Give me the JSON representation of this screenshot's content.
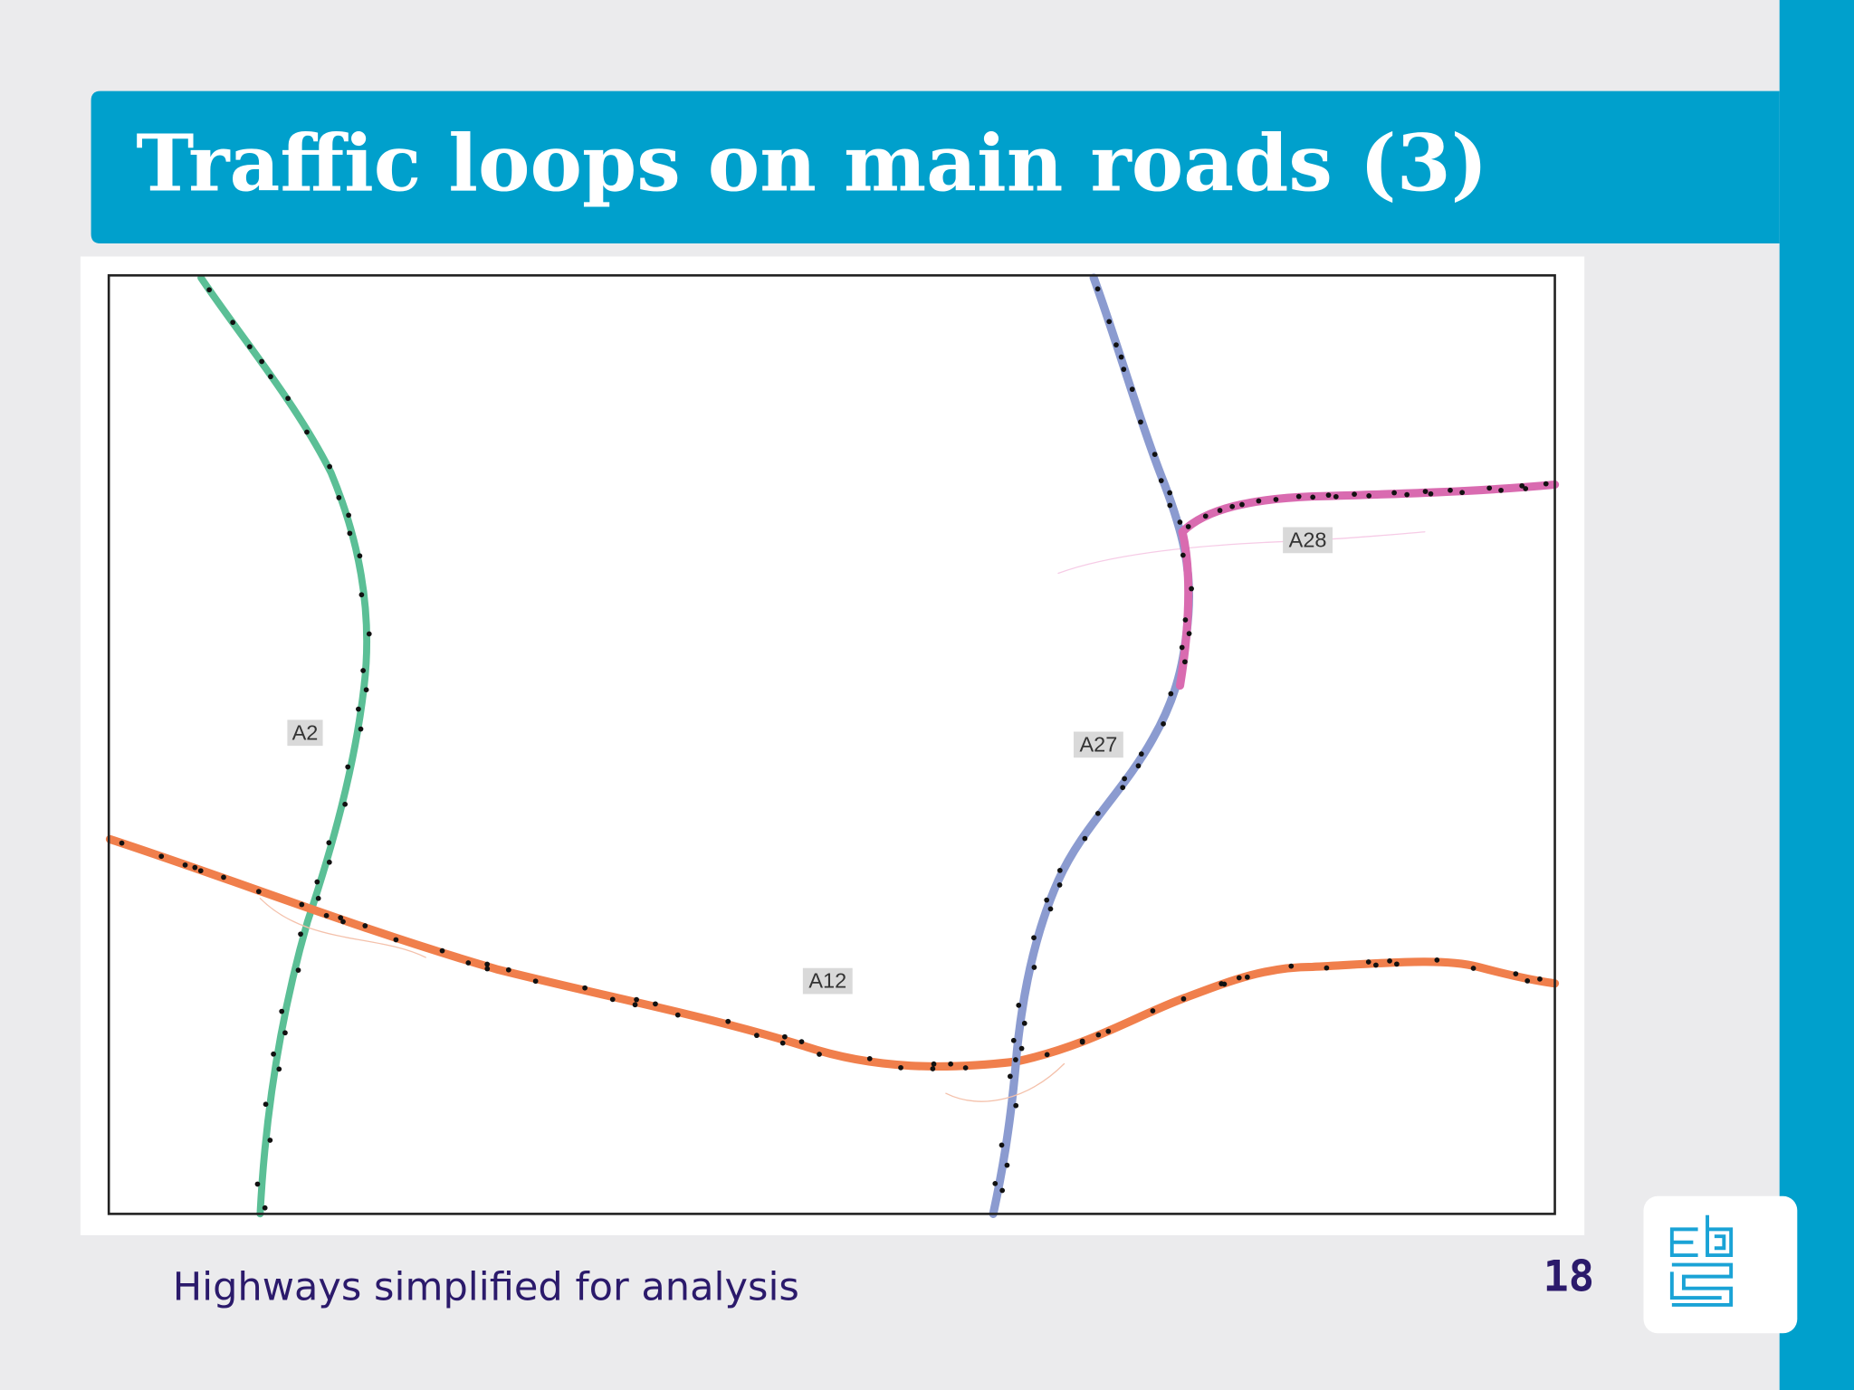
{
  "header": {
    "title": "Traffic loops on main roads (3)"
  },
  "map": {
    "labels": [
      "A2",
      "A27",
      "A28",
      "A12"
    ]
  },
  "footer": {
    "caption": "Highways simplified for analysis",
    "page_number": 18
  }
}
